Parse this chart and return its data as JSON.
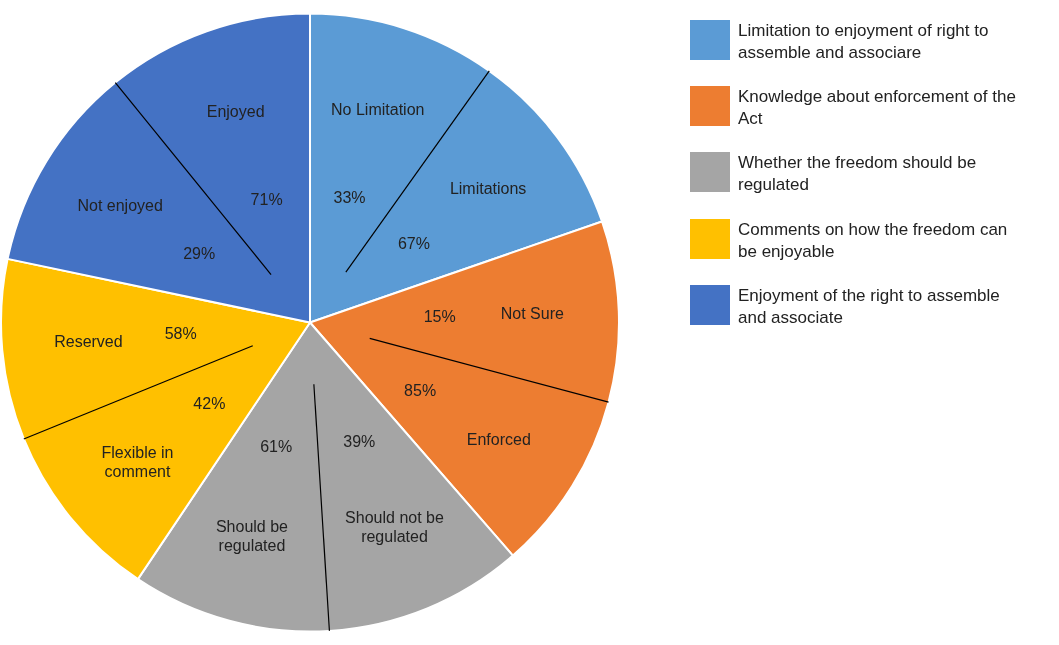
{
  "chart_data": {
    "type": "pie",
    "categories": [
      "Limitation to enjoyment of right to assemble and associare",
      "Knowledge about enforcement of the Act",
      "Whether the freedom should be regulated",
      "Comments on how the freedom can be enjoyable",
      "Enjoyment of the right to assemble and associate"
    ],
    "values": [
      19.7,
      18.9,
      20.8,
      18.9,
      21.7
    ],
    "colors": [
      "#5b9bd5",
      "#ed7d31",
      "#a5a5a5",
      "#ffc000",
      "#4472c4"
    ],
    "legend": "right",
    "annotations": [
      "No Limitation",
      "33%",
      "Limitations",
      "67%",
      "Not Sure",
      "15%",
      "Enforced",
      "85%",
      "Should not be regulated",
      "39%",
      "Should be regulated",
      "61%",
      "Flexible in comment",
      "42%",
      "Reserved",
      "58%",
      "Not enjoyed",
      "29%",
      "Enjoyed",
      "71%"
    ]
  }
}
